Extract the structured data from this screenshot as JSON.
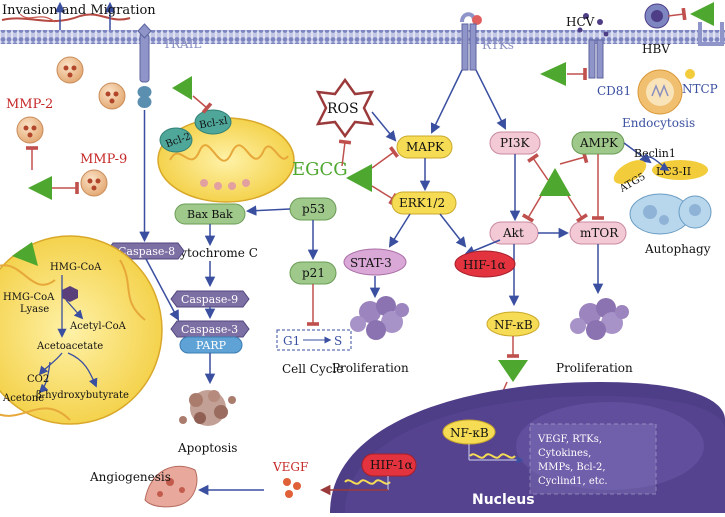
{
  "labels": {
    "invasion_migration": "Invasion and Migration",
    "trail": "TRAIL",
    "rtks": "RTKs",
    "hcv": "HCV",
    "hbv": "HBV",
    "cd81": "CD81",
    "ntcp": "NTCP",
    "endocytosis": "Endocytosis",
    "mmp2": "MMP-2",
    "mmp9": "MMP-9",
    "ros": "ROS",
    "egcg": "EGCG",
    "mapk": "MAPK",
    "erk": "ERK1/2",
    "stat3": "STAT-3",
    "hif1a": "HIF-1α",
    "pi3k": "PI3K",
    "akt": "Akt",
    "mtor": "mTOR",
    "ampk": "AMPK",
    "beclin1": "Beclin1",
    "atg5": "ATG5",
    "lc3": "LC3-II",
    "autophagy": "Autophagy",
    "bcl2": "Bcl-2",
    "bclxl": "Bcl-xl",
    "bax_bak": "Bax Bak",
    "p53": "p53",
    "p21": "p21",
    "cytochrome_c": "Cytochrome C",
    "caspase8": "Caspase-8",
    "caspase9": "Caspase-9",
    "caspase3": "Caspase-3",
    "parp": "PARP",
    "apoptosis": "Apoptosis",
    "g1": "G1",
    "s": "S",
    "cell_cycle": "Cell Cycle",
    "proliferation_left": "Proliferation",
    "proliferation_right": "Proliferation",
    "nfkb": "NF-κB",
    "nfkb_nucleus": "NF-κB",
    "hif1a_nucleus": "HIF-1α",
    "vegf": "VEGF",
    "angiogenesis": "Angiogenesis",
    "nucleus": "Nucleus",
    "targets": [
      "VEGF, RTKs,",
      "Cytokines,",
      "MMPs, Bcl-2,",
      "Cyclind1, etc."
    ],
    "hmgcoa": "HMG-CoA",
    "hmgcoa_lyase": [
      "HMG-CoA",
      "Lyase"
    ],
    "acetyl_coa": "Acetyl-CoA",
    "acetoacetate": "Acetoacetate",
    "co2": "CO2",
    "acetone": "Acetone",
    "hydroxybutyrate": "β-hydroxybutyrate"
  },
  "colors": {
    "activation": "#3a4fa0",
    "inhibition": "#c0504d",
    "egcg": "#4ea72e",
    "membrane": "#7e86c2",
    "nucleus": "#4e3d87"
  }
}
